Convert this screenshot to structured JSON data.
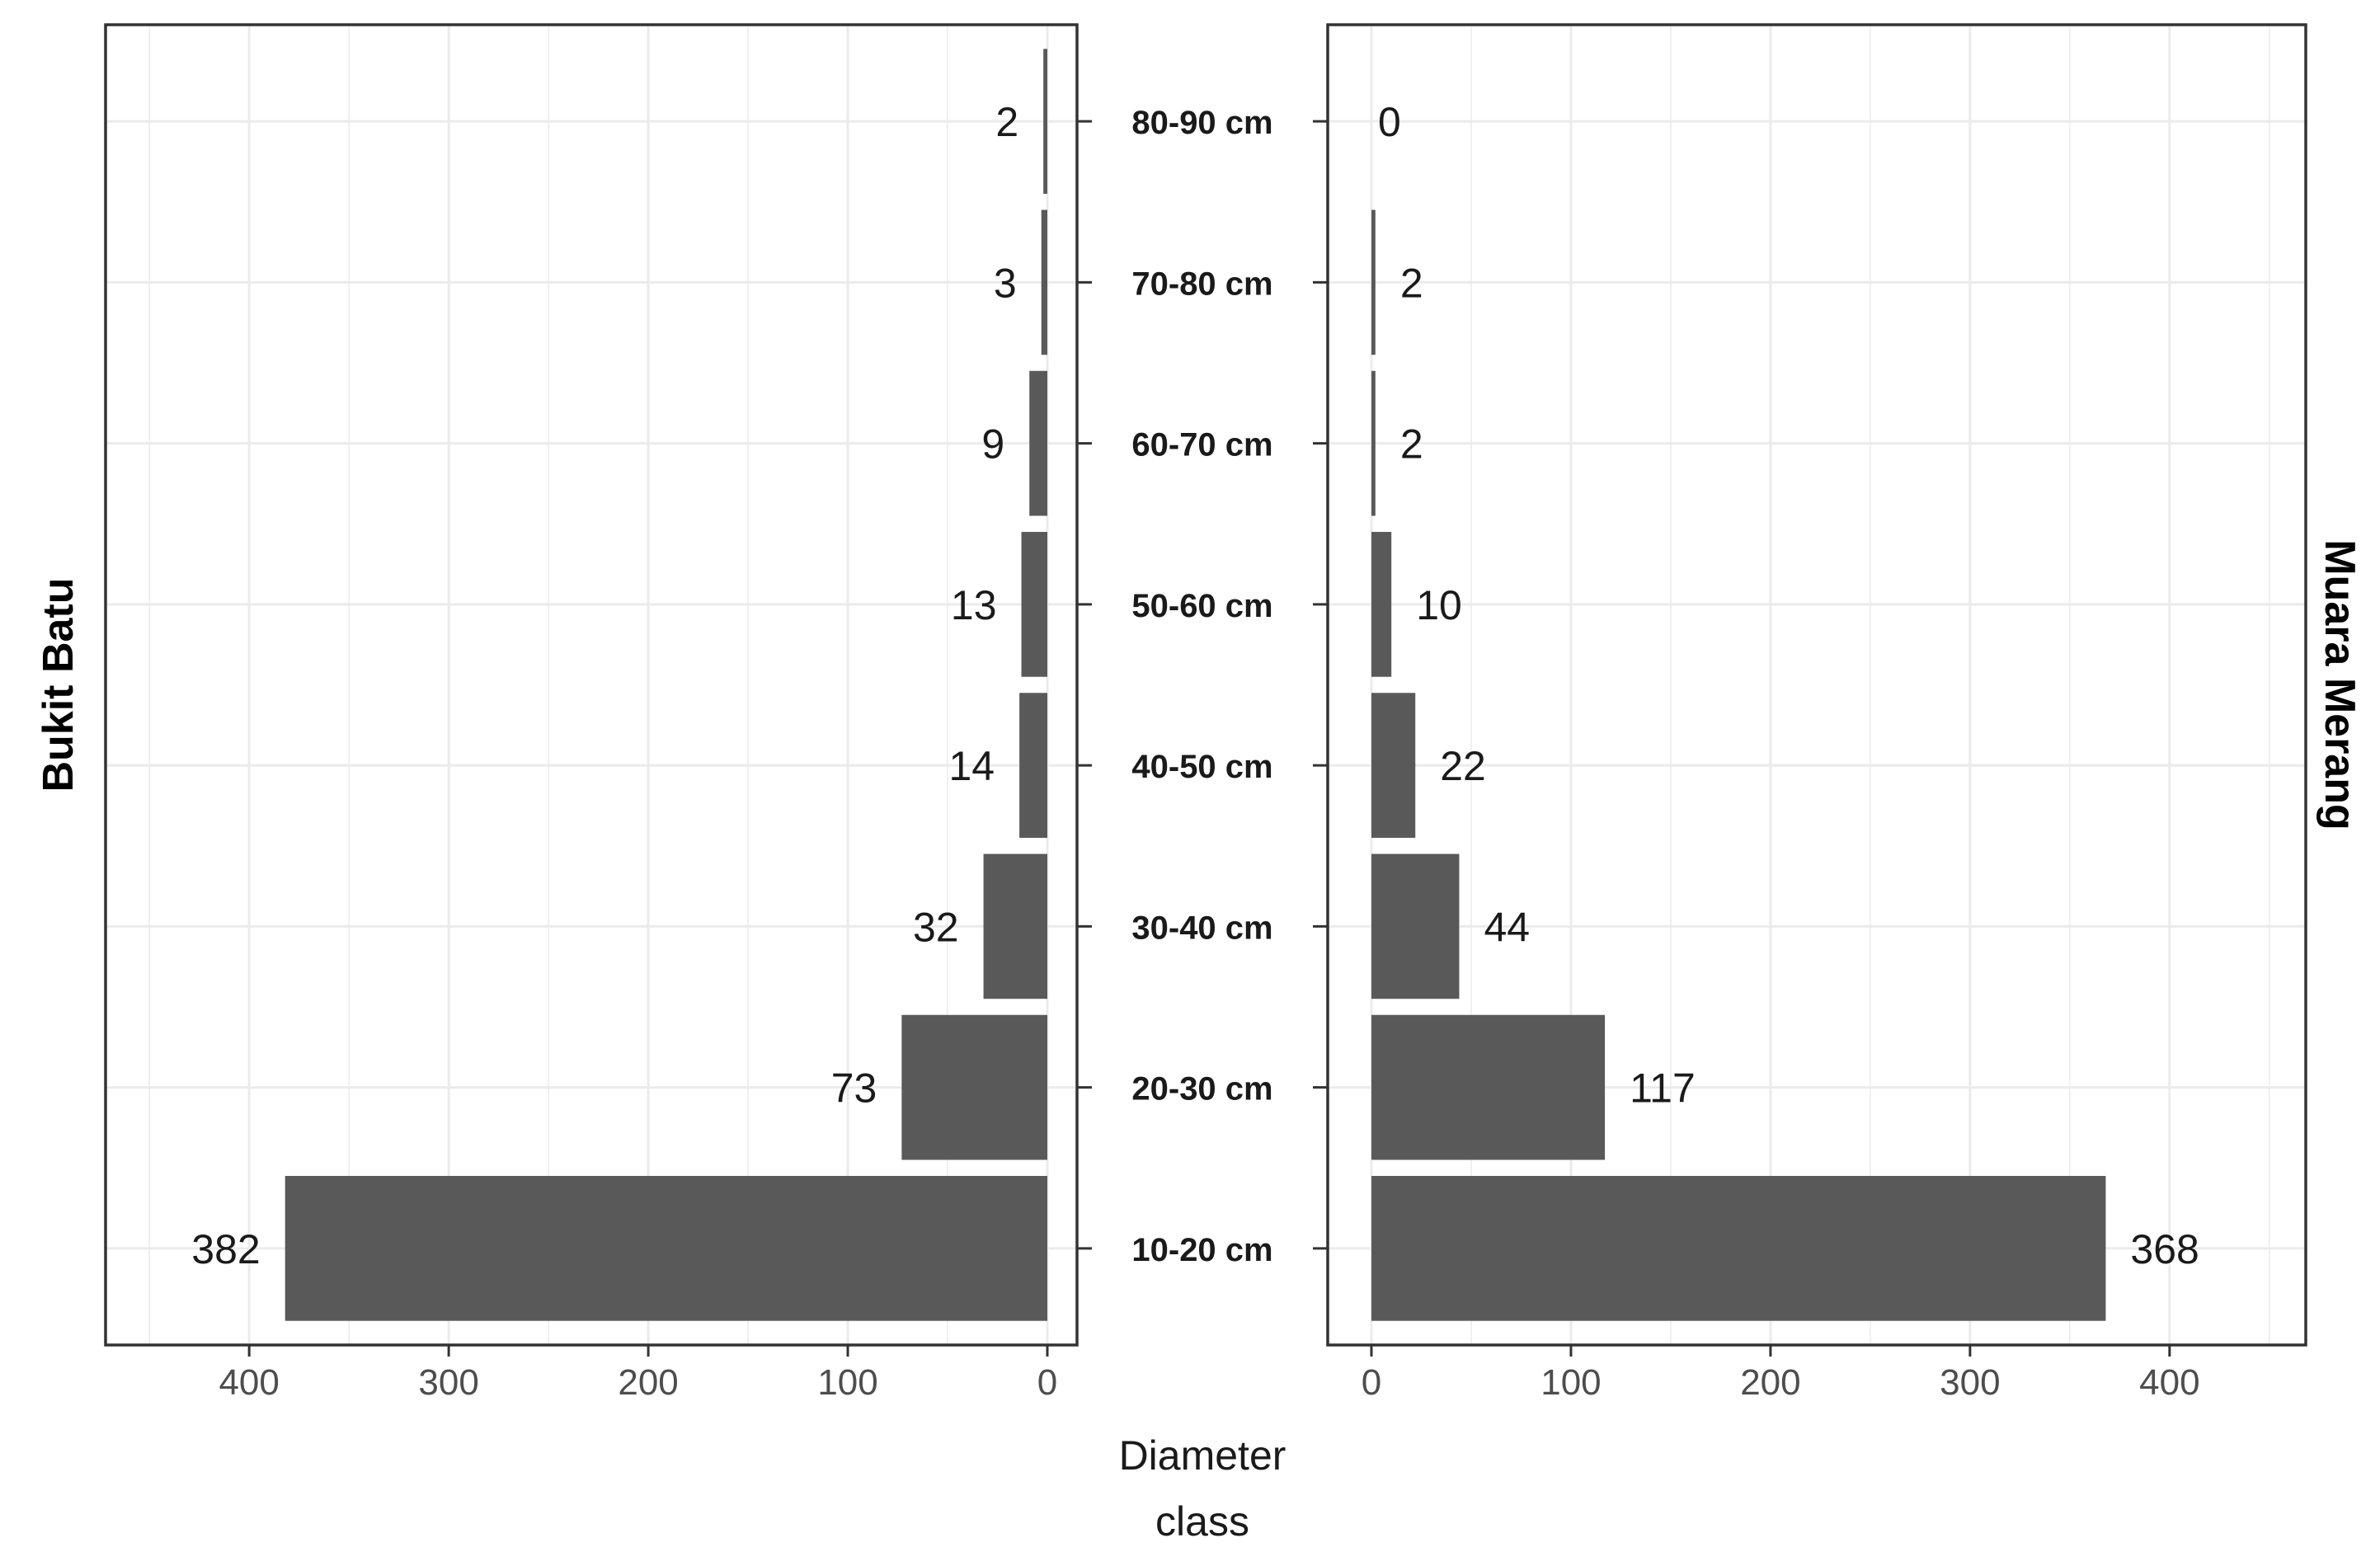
{
  "chart_data": {
    "type": "bar",
    "orientation": "horizontal",
    "layout": "back-to-back",
    "categories": [
      "10-20 cm",
      "20-30 cm",
      "30-40 cm",
      "40-50 cm",
      "50-60 cm",
      "60-70 cm",
      "70-80 cm",
      "80-90 cm"
    ],
    "series": [
      {
        "name": "Bukit Batu",
        "side": "left",
        "values": [
          382,
          73,
          32,
          14,
          13,
          9,
          3,
          2
        ]
      },
      {
        "name": "Muara Merang",
        "side": "right",
        "values": [
          368,
          117,
          44,
          22,
          10,
          2,
          2,
          0
        ]
      }
    ],
    "xticks": [
      0,
      100,
      200,
      300,
      400
    ],
    "xlim": [
      0,
      450
    ],
    "xlabel": [
      "Diameter",
      "class"
    ],
    "ylabel": "",
    "title": "",
    "grid": true,
    "bar_color": "#595959",
    "grid_color": "#ebebeb",
    "border_color": "#333333"
  }
}
